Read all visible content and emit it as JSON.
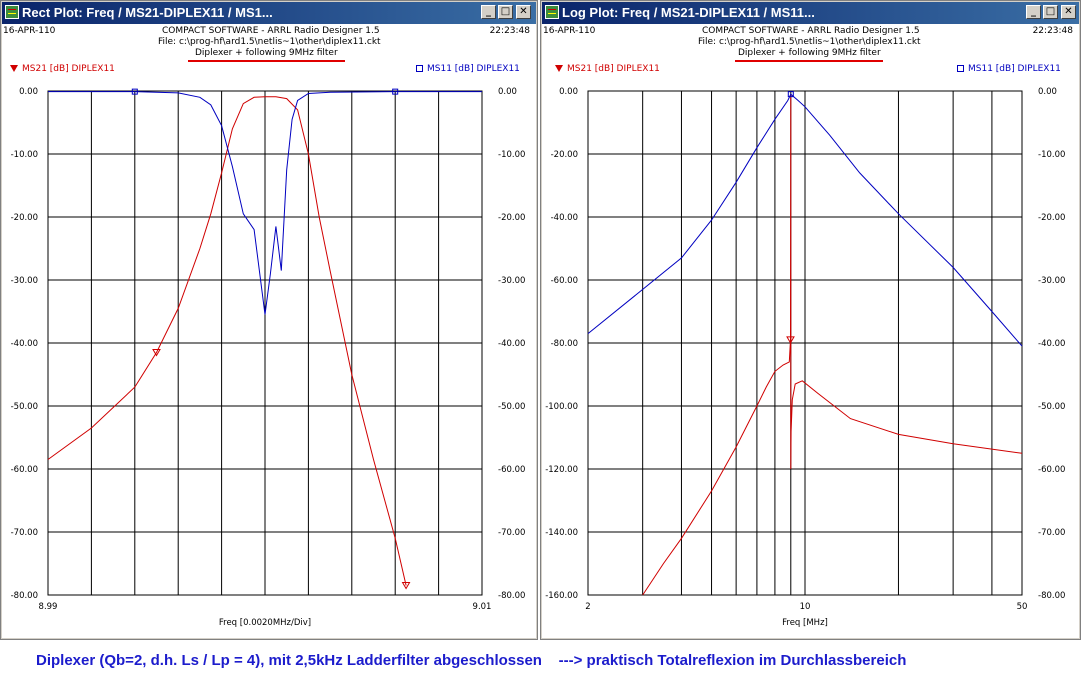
{
  "left_window": {
    "title": "Rect Plot: Freq / MS21-DIPLEX11 / MS1...",
    "date": "16-APR-110",
    "time": "22:23:48",
    "software": "COMPACT SOFTWARE - ARRL Radio Designer 1.5",
    "file": "File: c:\\prog-hf\\ard1.5\\netlis~1\\other\\diplex11.ckt",
    "subtitle": "Diplexer + following 9MHz filter",
    "legend_red": "MS21 [dB] DIPLEX11",
    "legend_blue": "MS11 [dB] DIPLEX11",
    "xlabel": "Freq [0.0020MHz/Div]",
    "x_min_label": "8.99",
    "x_max_label": "9.01",
    "left_ticks": [
      "0.00",
      "-10.00",
      "-20.00",
      "-30.00",
      "-40.00",
      "-50.00",
      "-60.00",
      "-70.00",
      "-80.00"
    ],
    "right_ticks": [
      "0.00",
      "-10.00",
      "-20.00",
      "-30.00",
      "-40.00",
      "-50.00",
      "-60.00",
      "-70.00",
      "-80.00"
    ],
    "minimize": "_",
    "maximize": "□",
    "close": "✕"
  },
  "right_window": {
    "title": "Log Plot: Freq / MS21-DIPLEX11 / MS11...",
    "date": "16-APR-110",
    "time": "22:23:48",
    "software": "COMPACT SOFTWARE - ARRL Radio Designer 1.5",
    "file": "File: c:\\prog-hf\\ard1.5\\netlis~1\\other\\diplex11.ckt",
    "subtitle": "Diplexer + following 9MHz filter",
    "legend_red": "MS21 [dB] DIPLEX11",
    "legend_blue": "MS11 [dB] DIPLEX11",
    "xlabel": "Freq [MHz]",
    "x_ticks": [
      "2",
      "10",
      "50"
    ],
    "left_ticks": [
      "0.00",
      "-20.00",
      "-40.00",
      "-60.00",
      "-80.00",
      "-100.00",
      "-120.00",
      "-140.00",
      "-160.00"
    ],
    "right_ticks": [
      "0.00",
      "-10.00",
      "-20.00",
      "-30.00",
      "-40.00",
      "-50.00",
      "-60.00",
      "-70.00",
      "-80.00"
    ],
    "minimize": "_",
    "maximize": "□",
    "close": "✕"
  },
  "caption": "Diplexer (Qb=2, d.h. Ls / Lp = 4), mit 2,5kHz Ladderfilter abgeschlossen    ---> praktisch Totalreflexion im Durchlassbereich",
  "colors": {
    "ms21": "#d00000",
    "ms11": "#0000c0",
    "titlebar": "#0a246a",
    "caption": "#1c1ccc"
  },
  "chart_data": [
    {
      "type": "line",
      "title": "Diplexer + following 9MHz filter",
      "xlabel": "Freq [0.0020MHz/Div]",
      "xlim": [
        8.99,
        9.01
      ],
      "ylim_left": [
        -80,
        0
      ],
      "ylim_right": [
        -80,
        0
      ],
      "grid": true,
      "series": [
        {
          "name": "MS21 [dB] DIPLEX11",
          "axis": "left",
          "x": [
            8.99,
            8.992,
            8.994,
            8.995,
            8.996,
            8.997,
            8.9975,
            8.998,
            8.9985,
            8.999,
            8.9995,
            9.0,
            9.0005,
            9.001,
            9.0015,
            9.002,
            9.0025,
            9.003,
            9.004,
            9.005,
            9.006,
            9.0065
          ],
          "y": [
            -58.5,
            -53.5,
            -47.0,
            -41.5,
            -34.5,
            -25.0,
            -19.5,
            -13.0,
            -6.0,
            -2.0,
            -1.0,
            -0.9,
            -0.9,
            -1.2,
            -3.0,
            -10.0,
            -20.0,
            -28.5,
            -45.0,
            -58.5,
            -71.0,
            -78.5
          ]
        },
        {
          "name": "MS11 [dB] DIPLEX11",
          "axis": "right",
          "x": [
            8.99,
            8.994,
            8.996,
            8.997,
            8.9975,
            8.998,
            8.9985,
            8.999,
            8.9995,
            9.0,
            9.00025,
            9.0005,
            9.00075,
            9.001,
            9.00125,
            9.0015,
            9.002,
            9.003,
            9.006,
            9.01
          ],
          "y": [
            -0.1,
            -0.1,
            -0.3,
            -1.0,
            -2.2,
            -5.5,
            -12.0,
            -19.5,
            -22.0,
            -35.5,
            -29.0,
            -21.5,
            -28.5,
            -12.5,
            -4.5,
            -1.5,
            -0.4,
            -0.2,
            -0.1,
            -0.1
          ]
        }
      ]
    },
    {
      "type": "line",
      "title": "Diplexer + following 9MHz filter",
      "xlabel": "Freq [MHz]",
      "xscale": "log",
      "xlim": [
        2,
        50
      ],
      "ylim_left": [
        -160,
        0
      ],
      "ylim_right": [
        -80,
        0
      ],
      "grid": true,
      "series": [
        {
          "name": "MS21 [dB] DIPLEX11",
          "axis": "left",
          "x": [
            3.0,
            3.5,
            4.0,
            5.0,
            6.0,
            7.0,
            7.5,
            8.0,
            8.5,
            8.9,
            8.98,
            9.0,
            9.0,
            9.02,
            9.1,
            9.3,
            9.8,
            11.0,
            14.0,
            20.0,
            30.0,
            50.0
          ],
          "y": [
            -160.0,
            -150.0,
            -142.0,
            -127.0,
            -113.0,
            -100.0,
            -94.0,
            -89.0,
            -87.0,
            -86.0,
            -79.0,
            -1.0,
            -120.0,
            -108.0,
            -98.0,
            -93.0,
            -92.0,
            -96.0,
            -104.0,
            -109.0,
            -112.0,
            -115.0
          ]
        },
        {
          "name": "MS11 [dB] DIPLEX11",
          "axis": "right",
          "x": [
            2.0,
            3.0,
            4.0,
            5.0,
            6.0,
            7.0,
            8.0,
            8.8,
            9.0,
            9.5,
            10.0,
            12.0,
            15.0,
            20.0,
            30.0,
            40.0,
            50.0
          ],
          "y": [
            -38.5,
            -31.5,
            -26.5,
            -20.5,
            -14.5,
            -9.0,
            -4.5,
            -1.5,
            -0.5,
            -1.5,
            -2.5,
            -7.0,
            -13.0,
            -19.5,
            -28.0,
            -35.0,
            -40.5
          ]
        }
      ]
    }
  ]
}
